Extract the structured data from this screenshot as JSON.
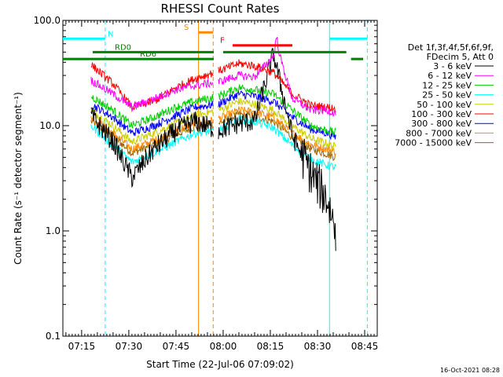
{
  "chart_data": {
    "type": "line",
    "title": "RHESSI Count Rates",
    "xlabel": "Start Time (22-Jul-06 07:09:02)",
    "ylabel": "Count Rate (s⁻¹ detector segment⁻¹)",
    "y_scale": "log",
    "ylim": [
      0.1,
      100
    ],
    "xlim": [
      "07:09:02",
      "08:49:00"
    ],
    "x_ticks": [
      "07:15",
      "07:30",
      "07:45",
      "08:00",
      "08:15",
      "08:30",
      "08:45"
    ],
    "y_ticks": [
      "0.1",
      "1.0",
      "10.0",
      "100.0"
    ],
    "legend_header": [
      "Det 1f,3f,4f,5f,6f,9f,",
      "FDecim 5, Att 0"
    ],
    "series": [
      {
        "name": "3 - 6 keV",
        "color": "#000000",
        "x": [
          "07:18",
          "07:25",
          "07:31",
          "07:38",
          "07:45",
          "07:51",
          "07:58:30",
          "08:05",
          "08:10",
          "08:16",
          "08:22",
          "08:28",
          "08:33",
          "08:36"
        ],
        "values": [
          12.5,
          7.0,
          3.2,
          6.0,
          9.0,
          11.0,
          9.0,
          10.5,
          11.0,
          48,
          8.0,
          3.5,
          2.0,
          1.0
        ]
      },
      {
        "name": "6 - 12 keV",
        "color": "#ff00ff",
        "x": [
          "07:18",
          "07:25",
          "07:31",
          "07:38",
          "07:45",
          "07:51",
          "07:58:30",
          "08:05",
          "08:10",
          "08:16",
          "08:17",
          "08:18",
          "08:22",
          "08:28",
          "08:33",
          "08:36"
        ],
        "values": [
          27,
          20,
          15,
          18,
          22,
          24,
          26,
          30,
          29,
          46,
          70,
          46,
          18,
          14,
          14,
          13
        ]
      },
      {
        "name": "12 - 25 keV",
        "color": "#00cc00",
        "x": [
          "07:18",
          "07:25",
          "07:31",
          "07:38",
          "07:45",
          "07:51",
          "07:58:30",
          "08:05",
          "08:10",
          "08:16",
          "08:22",
          "08:28",
          "08:33",
          "08:36"
        ],
        "values": [
          19,
          14,
          10,
          12,
          15,
          17,
          19,
          23,
          22,
          20,
          14,
          10,
          9,
          8.5
        ]
      },
      {
        "name": "25 - 50 keV",
        "color": "#00ffff",
        "x": [
          "07:18",
          "07:25",
          "07:31",
          "07:38",
          "07:45",
          "07:51",
          "07:58:30",
          "08:05",
          "08:10",
          "08:16",
          "08:22",
          "08:28",
          "08:33",
          "08:36"
        ],
        "values": [
          10,
          6.5,
          4.5,
          5.5,
          7.0,
          8.5,
          9.0,
          11.5,
          11.0,
          9.5,
          6.5,
          4.8,
          4.2,
          4.0
        ]
      },
      {
        "name": "50 - 100 keV",
        "color": "#cccc00",
        "x": [
          "07:18",
          "07:25",
          "07:31",
          "07:38",
          "07:45",
          "07:51",
          "07:58:30",
          "08:05",
          "08:10",
          "08:16",
          "08:22",
          "08:28",
          "08:33",
          "08:36"
        ],
        "values": [
          14,
          10,
          7.0,
          8.5,
          10.5,
          12.5,
          14,
          17,
          16,
          14,
          10,
          7.5,
          6.8,
          6.2
        ]
      },
      {
        "name": "100 - 300 keV",
        "color": "#ff0000",
        "x": [
          "07:18",
          "07:25",
          "07:31",
          "07:38",
          "07:45",
          "07:51",
          "07:58:30",
          "08:05",
          "08:10",
          "08:16",
          "08:22",
          "08:28",
          "08:33",
          "08:36"
        ],
        "values": [
          38,
          25,
          15,
          17,
          23,
          28,
          33,
          39,
          37,
          32,
          20,
          15.5,
          15,
          14.5
        ]
      },
      {
        "name": "300 - 800 keV",
        "color": "#0000ff",
        "x": [
          "07:18",
          "07:25",
          "07:31",
          "07:38",
          "07:45",
          "07:51",
          "07:58:30",
          "08:05",
          "08:10",
          "08:16",
          "08:22",
          "08:28",
          "08:33",
          "08:36"
        ],
        "values": [
          16,
          12,
          8.5,
          10,
          12.5,
          15,
          16,
          20,
          19,
          17,
          12,
          9.2,
          8.5,
          7.8
        ]
      },
      {
        "name": "800 - 7000 keV",
        "color": "#ff8800",
        "x": [
          "07:18",
          "07:25",
          "07:31",
          "07:38",
          "07:45",
          "07:51",
          "07:58:30",
          "08:05",
          "08:10",
          "08:16",
          "08:22",
          "08:28",
          "08:33",
          "08:36"
        ],
        "values": [
          12,
          8.5,
          6.0,
          7.2,
          9.0,
          10.5,
          11.5,
          14,
          13.5,
          12,
          8.5,
          6.6,
          6.0,
          5.6
        ]
      },
      {
        "name": "7000 - 15000 keV",
        "color": "#996600",
        "x": [
          "07:18",
          "07:25",
          "07:31",
          "07:38",
          "07:45",
          "07:51",
          "07:58:30",
          "08:05",
          "08:10",
          "08:16",
          "08:22",
          "08:28",
          "08:33",
          "08:36"
        ],
        "values": [
          11,
          8.0,
          5.5,
          6.6,
          8.2,
          9.8,
          10.5,
          12.8,
          12.3,
          11,
          7.8,
          6.0,
          5.4,
          5.0
        ]
      }
    ],
    "annotations": {
      "vlines": [
        {
          "x": "07:22:30",
          "color": "#00ffff",
          "style": "dashed"
        },
        {
          "x": "07:52:10",
          "color": "#ff8800",
          "style": "solid"
        },
        {
          "x": "07:56:50",
          "color": "#ff8800",
          "style": "dashed"
        },
        {
          "x": "08:33:50",
          "color": "#00ffff",
          "style": "solid"
        },
        {
          "x": "08:45:50",
          "color": "#00ffff",
          "style": "dashed"
        }
      ],
      "flags": [
        {
          "label": "N",
          "color": "#00ffff",
          "segments": [
            [
              "07:09:02",
              "07:22:30"
            ],
            [
              "08:33:50",
              "08:45:50"
            ]
          ],
          "level": 67
        },
        {
          "label": "S",
          "color": "#ff8800",
          "segments": [
            [
              "07:52:10",
              "07:56:50"
            ]
          ],
          "level": 77
        },
        {
          "label": "F",
          "color": "#ff0000",
          "segments": [
            [
              "08:03",
              "08:22"
            ]
          ],
          "level": 58
        },
        {
          "label": "RD0",
          "color": "#008000",
          "segments": [
            [
              "07:18:30",
              "07:57:00"
            ],
            [
              "08:00",
              "08:39:10"
            ]
          ],
          "level": 50
        },
        {
          "label": "RD6",
          "color": "#008000",
          "segments": [
            [
              "07:09:02",
              "07:57:00"
            ],
            [
              "08:40:40",
              "08:44:30"
            ]
          ],
          "level": 43
        }
      ]
    },
    "footer": "16-Oct-2021 08:28"
  }
}
